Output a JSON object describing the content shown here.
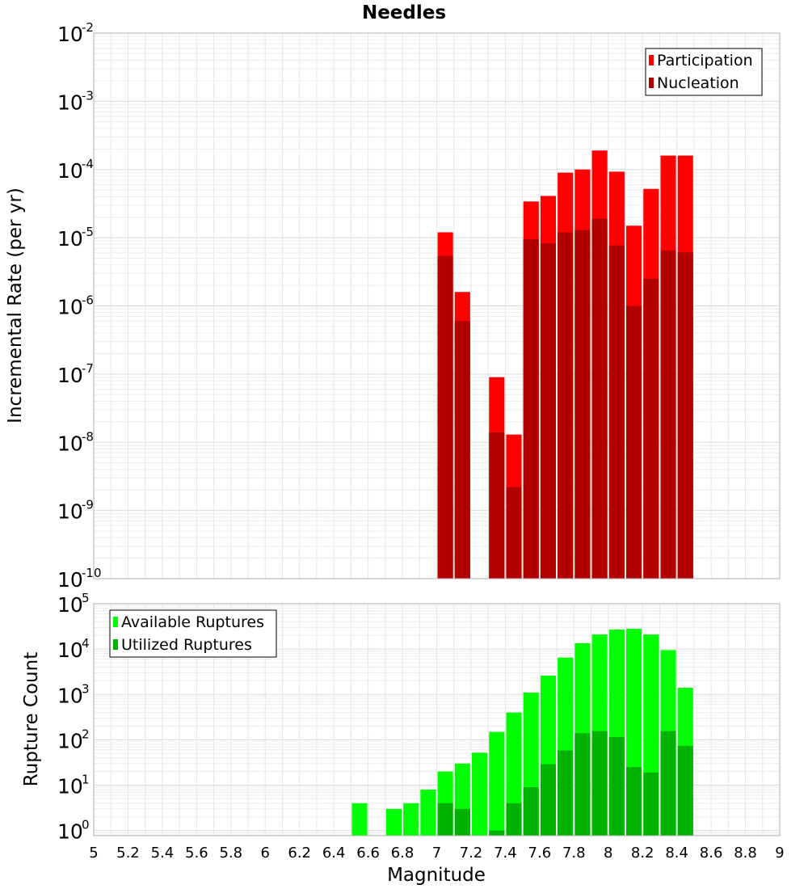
{
  "title": "Needles",
  "xlabel": "Magnitude",
  "x_ticks": [
    "5",
    "5.2",
    "5.4",
    "5.6",
    "5.8",
    "6",
    "6.2",
    "6.4",
    "6.6",
    "6.8",
    "7",
    "7.2",
    "7.4",
    "7.6",
    "7.8",
    "8",
    "8.2",
    "8.4",
    "8.6",
    "8.8",
    "9"
  ],
  "chart_data": [
    {
      "type": "bar",
      "ylabel": "Incremental Rate (per yr)",
      "yscale": "log",
      "xlim": [
        5,
        9
      ],
      "ylim": [
        1e-10,
        0.01
      ],
      "y_ticks": [
        {
          "base": "10",
          "exp": "-10"
        },
        {
          "base": "10",
          "exp": "-9"
        },
        {
          "base": "10",
          "exp": "-8"
        },
        {
          "base": "10",
          "exp": "-7"
        },
        {
          "base": "10",
          "exp": "-6"
        },
        {
          "base": "10",
          "exp": "-5"
        },
        {
          "base": "10",
          "exp": "-4"
        },
        {
          "base": "10",
          "exp": "-3"
        },
        {
          "base": "10",
          "exp": "-2"
        }
      ],
      "legend_position": "top-right",
      "x": [
        7.05,
        7.15,
        7.35,
        7.45,
        7.55,
        7.65,
        7.75,
        7.85,
        7.95,
        8.05,
        8.15,
        8.25,
        8.35,
        8.45
      ],
      "series": [
        {
          "name": "Participation",
          "color": "#ff0000",
          "values": [
            1.2e-05,
            1.6e-06,
            9e-08,
            1.3e-08,
            3.4e-05,
            4.1e-05,
            9e-05,
            0.0001,
            0.00019,
            9.3e-05,
            1.5e-05,
            5.2e-05,
            0.00016,
            0.00016
          ]
        },
        {
          "name": "Nucleation",
          "color": "#b20000",
          "values": [
            5.4e-06,
            6e-07,
            1.4e-08,
            2.2e-09,
            9.5e-06,
            8.3e-06,
            1.2e-05,
            1.3e-05,
            1.9e-05,
            7.7e-06,
            1e-06,
            2.5e-06,
            6.5e-06,
            6.1e-06
          ]
        }
      ]
    },
    {
      "type": "bar",
      "ylabel": "Rupture Count",
      "yscale": "log",
      "xlim": [
        5,
        9
      ],
      "ylim": [
        0.77,
        100000
      ],
      "y_ticks": [
        {
          "base": "10",
          "exp": "0"
        },
        {
          "base": "10",
          "exp": "1"
        },
        {
          "base": "10",
          "exp": "2"
        },
        {
          "base": "10",
          "exp": "3"
        },
        {
          "base": "10",
          "exp": "4"
        },
        {
          "base": "10",
          "exp": "5"
        }
      ],
      "legend_position": "top-left",
      "x": [
        6.55,
        6.75,
        6.85,
        6.95,
        7.05,
        7.15,
        7.25,
        7.35,
        7.45,
        7.55,
        7.65,
        7.75,
        7.85,
        7.95,
        8.05,
        8.15,
        8.25,
        8.35,
        8.45
      ],
      "series": [
        {
          "name": "Available Ruptures",
          "color": "#00ff00",
          "values": [
            4,
            3,
            4,
            8,
            20,
            30,
            52,
            150,
            400,
            1100,
            2600,
            6500,
            13500,
            21000,
            27000,
            28000,
            21000,
            9500,
            1400
          ]
        },
        {
          "name": "Utilized Ruptures",
          "color": "#00b200",
          "values": [
            0,
            0,
            0,
            0,
            4,
            3,
            0,
            1,
            4,
            9,
            29,
            58,
            140,
            155,
            115,
            25,
            19,
            155,
            73
          ]
        }
      ]
    }
  ]
}
